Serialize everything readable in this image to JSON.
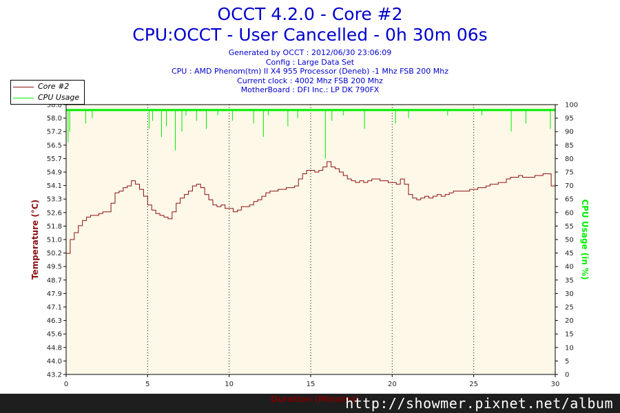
{
  "header": {
    "title": "OCCT 4.2.0 - Core #2",
    "subtitle": "CPU:OCCT - User Cancelled - 0h 30m 06s",
    "info_lines": [
      "Generated by OCCT : 2012/06/30 23:06:09",
      "Config : Large Data Set",
      "CPU : AMD Phenom(tm) II X4 955 Processor (Deneb) -1 Mhz FSB 200 Mhz",
      "Current clock : 4002 Mhz FSB 200 Mhz",
      "MotherBoard : DFI Inc.: LP DK 790FX"
    ]
  },
  "watermark": "http://showmer.pixnet.net/album",
  "colors": {
    "temperature": "#8b1010",
    "cpu_usage": "#00ee00",
    "plot_bg": "#fdf8e8",
    "title": "#0000cc"
  },
  "chart_data": {
    "type": "line",
    "xlabel": "Duration (Minutes)",
    "ylabel_left": "Temperature (°C)",
    "ylabel_right": "CPU Usage (in %)",
    "xlim": [
      0,
      30
    ],
    "ylim_left": [
      43.2,
      58.8
    ],
    "ylim_right": [
      0,
      100
    ],
    "x_ticks": [
      0,
      5,
      10,
      15,
      20,
      25,
      30
    ],
    "y_left_ticks": [
      "43.2",
      "44.0",
      "44.8",
      "45.6",
      "46.3",
      "47.1",
      "47.9",
      "48.7",
      "49.5",
      "50.2",
      "51.0",
      "51.8",
      "52.6",
      "53.3",
      "54.1",
      "54.9",
      "55.7",
      "56.5",
      "57.2",
      "58.0",
      "58.8"
    ],
    "y_right_ticks": [
      0,
      5,
      10,
      15,
      20,
      25,
      30,
      35,
      40,
      45,
      50,
      55,
      60,
      65,
      70,
      75,
      80,
      85,
      90,
      95,
      100
    ],
    "grid": "vertical-dotted",
    "legend_position": "top-left",
    "series": [
      {
        "name": "Core #2",
        "axis": "left",
        "x": [
          0,
          0.25,
          0.5,
          0.75,
          1,
          1.25,
          1.5,
          1.75,
          2,
          2.25,
          2.5,
          2.75,
          3,
          3.25,
          3.5,
          3.75,
          4,
          4.25,
          4.5,
          4.75,
          5,
          5.25,
          5.5,
          5.75,
          6,
          6.25,
          6.5,
          6.75,
          7,
          7.25,
          7.5,
          7.75,
          8,
          8.25,
          8.5,
          8.75,
          9,
          9.25,
          9.5,
          9.75,
          10,
          10.25,
          10.5,
          10.75,
          11,
          11.25,
          11.5,
          11.75,
          12,
          12.25,
          12.5,
          12.75,
          13,
          13.25,
          13.5,
          13.75,
          14,
          14.25,
          14.5,
          14.75,
          15,
          15.25,
          15.5,
          15.75,
          16,
          16.25,
          16.5,
          16.75,
          17,
          17.25,
          17.5,
          17.75,
          18,
          18.25,
          18.5,
          18.75,
          19,
          19.25,
          19.5,
          19.75,
          20,
          20.25,
          20.5,
          20.75,
          21,
          21.25,
          21.5,
          21.75,
          22,
          22.25,
          22.5,
          22.75,
          23,
          23.25,
          23.5,
          23.75,
          24,
          24.25,
          24.5,
          24.75,
          25,
          25.25,
          25.5,
          25.75,
          26,
          26.25,
          26.5,
          26.75,
          27,
          27.25,
          27.5,
          27.75,
          28,
          28.25,
          28.5,
          28.75,
          29,
          29.25,
          29.5,
          29.75,
          30
        ],
        "values": [
          50.2,
          51.0,
          51.4,
          51.8,
          52.1,
          52.3,
          52.4,
          52.4,
          52.5,
          52.6,
          52.6,
          53.1,
          53.7,
          53.8,
          54.0,
          54.1,
          54.4,
          54.2,
          53.9,
          53.5,
          53.0,
          52.7,
          52.5,
          52.4,
          52.3,
          52.2,
          52.6,
          53.1,
          53.4,
          53.6,
          53.8,
          54.1,
          54.2,
          54.0,
          53.6,
          53.3,
          53.0,
          52.9,
          53.0,
          52.8,
          52.8,
          52.6,
          52.7,
          52.9,
          52.9,
          53.0,
          53.2,
          53.3,
          53.5,
          53.7,
          53.8,
          53.8,
          53.9,
          53.9,
          54.0,
          54.0,
          54.1,
          54.5,
          54.8,
          55.0,
          55.0,
          54.9,
          55.0,
          55.2,
          55.5,
          55.2,
          55.1,
          54.9,
          54.7,
          54.5,
          54.4,
          54.3,
          54.4,
          54.3,
          54.4,
          54.5,
          54.5,
          54.4,
          54.4,
          54.3,
          54.3,
          54.2,
          54.5,
          54.2,
          53.6,
          53.4,
          53.3,
          53.4,
          53.5,
          53.4,
          53.5,
          53.6,
          53.5,
          53.6,
          53.7,
          53.8,
          53.8,
          53.8,
          53.8,
          53.9,
          53.9,
          54.0,
          54.0,
          54.1,
          54.2,
          54.2,
          54.3,
          54.3,
          54.5,
          54.6,
          54.6,
          54.7,
          54.6,
          54.6,
          54.6,
          54.7,
          54.7,
          54.8,
          54.8,
          54.1,
          54.0
        ]
      },
      {
        "name": "CPU Usage",
        "axis": "right",
        "baseline": 98,
        "x": [
          0.12,
          0.22,
          1.2,
          1.6,
          5.1,
          5.3,
          5.85,
          6.15,
          6.7,
          7.1,
          7.35,
          8.0,
          8.6,
          9.3,
          10.2,
          11.5,
          12.1,
          12.4,
          13.6,
          14.2,
          15.9,
          16.3,
          17.0,
          18.3,
          20.2,
          21.0,
          23.4,
          25.5,
          27.3,
          28.2,
          29.7,
          30.0
        ],
        "values": [
          86,
          90,
          93,
          95,
          91,
          94,
          88,
          92,
          83,
          90,
          96,
          94,
          91,
          96,
          94,
          93,
          88,
          96,
          92,
          95,
          80,
          94,
          96,
          91,
          93,
          95,
          96,
          96,
          90,
          93,
          91,
          97
        ]
      }
    ]
  }
}
